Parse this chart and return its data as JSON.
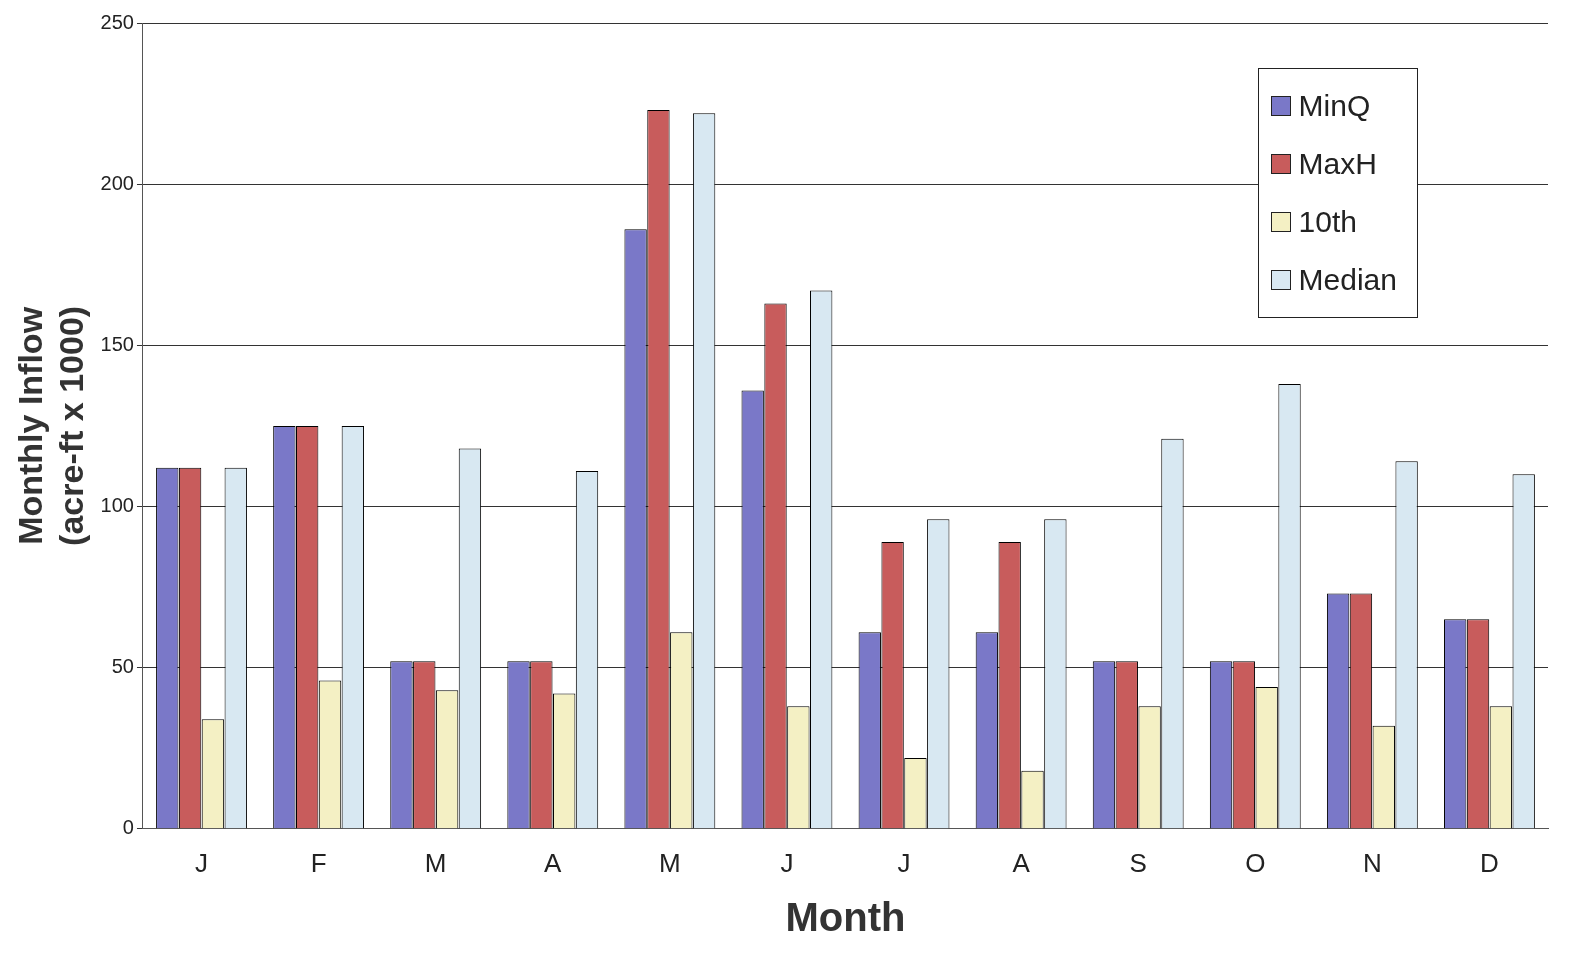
{
  "chart_data": {
    "type": "bar",
    "xlabel": "Month",
    "ylabel": "Monthly Inflow (acre-ft x 1000)",
    "categories": [
      "J",
      "F",
      "M",
      "A",
      "M",
      "J",
      "J",
      "A",
      "S",
      "O",
      "N",
      "D"
    ],
    "series": [
      {
        "name": "MinQ",
        "color": "#7a78c8",
        "values": [
          112,
          125,
          52,
          52,
          186,
          136,
          61,
          61,
          52,
          52,
          73,
          65
        ]
      },
      {
        "name": "MaxH",
        "color": "#c85c5c",
        "values": [
          112,
          125,
          52,
          52,
          223,
          163,
          89,
          89,
          52,
          52,
          73,
          65
        ]
      },
      {
        "name": "10th",
        "color": "#f4f0c4",
        "values": [
          34,
          46,
          43,
          42,
          61,
          38,
          22,
          18,
          38,
          44,
          32,
          38
        ]
      },
      {
        "name": "Median",
        "color": "#d8e8f2",
        "values": [
          112,
          125,
          118,
          111,
          222,
          167,
          96,
          96,
          121,
          138,
          114,
          110
        ]
      }
    ],
    "ylim": [
      0,
      250
    ],
    "yticks": [
      0,
      50,
      100,
      150,
      200,
      250
    ],
    "grid": "y",
    "legend": "top right"
  }
}
